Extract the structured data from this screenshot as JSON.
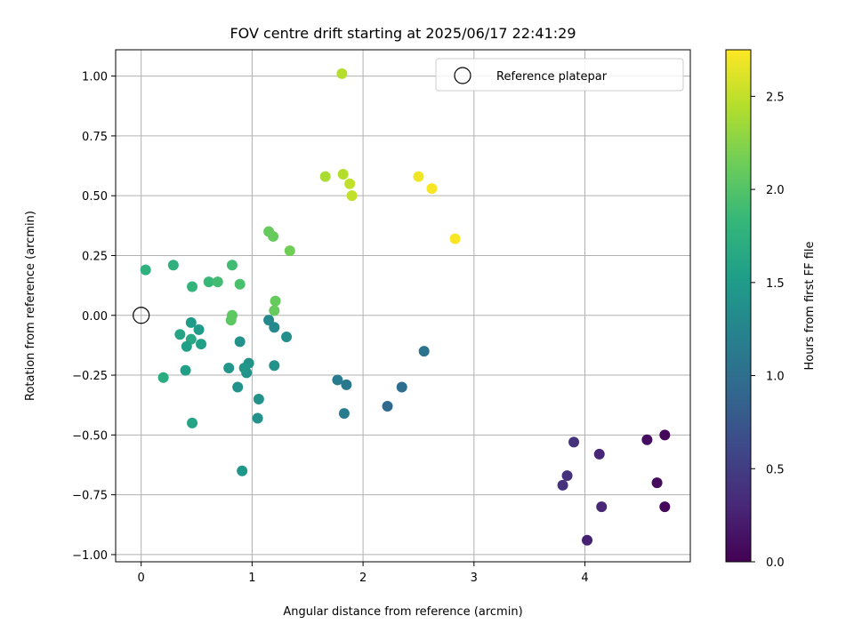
{
  "chart_data": {
    "type": "scatter",
    "title": "FOV centre drift starting at 2025/06/17 22:41:29",
    "xlabel": "Angular distance from reference (arcmin)",
    "ylabel": "Rotation from reference (arcmin)",
    "xlim": [
      -0.23,
      4.95
    ],
    "ylim": [
      -1.03,
      1.11
    ],
    "xticks": [
      "0",
      "1",
      "2",
      "3",
      "4"
    ],
    "yticks": [
      "−1.00",
      "−0.75",
      "−0.50",
      "−0.25",
      "0.00",
      "0.25",
      "0.50",
      "0.75",
      "1.00"
    ],
    "grid": true,
    "legend": {
      "placement": "top-right",
      "entries": [
        "Reference platepar"
      ]
    },
    "reference_point": {
      "x": 0.0,
      "y": 0.0
    },
    "colorbar": {
      "label": "Hours from first FF file",
      "colormap": "viridis",
      "range": [
        0.0,
        2.75
      ],
      "ticks": [
        "0.0",
        "0.5",
        "1.0",
        "1.5",
        "2.0",
        "2.5"
      ]
    },
    "points": [
      {
        "x": 4.72,
        "y": -0.5,
        "c": 0.05
      },
      {
        "x": 4.72,
        "y": -0.8,
        "c": 0.05
      },
      {
        "x": 4.65,
        "y": -0.7,
        "c": 0.08
      },
      {
        "x": 4.56,
        "y": -0.52,
        "c": 0.1
      },
      {
        "x": 4.02,
        "y": -0.94,
        "c": 0.25
      },
      {
        "x": 4.13,
        "y": -0.58,
        "c": 0.3
      },
      {
        "x": 4.15,
        "y": -0.8,
        "c": 0.3
      },
      {
        "x": 3.9,
        "y": -0.53,
        "c": 0.4
      },
      {
        "x": 3.84,
        "y": -0.67,
        "c": 0.4
      },
      {
        "x": 3.8,
        "y": -0.71,
        "c": 0.4
      },
      {
        "x": 2.55,
        "y": -0.15,
        "c": 1.05
      },
      {
        "x": 2.35,
        "y": -0.3,
        "c": 1.0
      },
      {
        "x": 2.22,
        "y": -0.38,
        "c": 0.95
      },
      {
        "x": 1.83,
        "y": -0.41,
        "c": 1.15
      },
      {
        "x": 1.85,
        "y": -0.29,
        "c": 1.1
      },
      {
        "x": 1.77,
        "y": -0.27,
        "c": 1.15
      },
      {
        "x": 1.31,
        "y": -0.09,
        "c": 1.35
      },
      {
        "x": 1.2,
        "y": -0.21,
        "c": 1.4
      },
      {
        "x": 1.2,
        "y": -0.05,
        "c": 1.3
      },
      {
        "x": 1.15,
        "y": -0.02,
        "c": 1.3
      },
      {
        "x": 1.06,
        "y": -0.35,
        "c": 1.4
      },
      {
        "x": 1.05,
        "y": -0.43,
        "c": 1.4
      },
      {
        "x": 0.97,
        "y": -0.2,
        "c": 1.4
      },
      {
        "x": 0.95,
        "y": -0.24,
        "c": 1.4
      },
      {
        "x": 0.93,
        "y": -0.22,
        "c": 1.45
      },
      {
        "x": 0.91,
        "y": -0.65,
        "c": 1.45
      },
      {
        "x": 0.89,
        "y": -0.11,
        "c": 1.4
      },
      {
        "x": 0.87,
        "y": -0.3,
        "c": 1.4
      },
      {
        "x": 0.79,
        "y": -0.22,
        "c": 1.45
      },
      {
        "x": 0.54,
        "y": -0.12,
        "c": 1.55
      },
      {
        "x": 0.52,
        "y": -0.06,
        "c": 1.5
      },
      {
        "x": 0.46,
        "y": -0.45,
        "c": 1.6
      },
      {
        "x": 0.45,
        "y": -0.1,
        "c": 1.65
      },
      {
        "x": 0.45,
        "y": -0.03,
        "c": 1.5
      },
      {
        "x": 0.41,
        "y": -0.13,
        "c": 1.55
      },
      {
        "x": 0.4,
        "y": -0.23,
        "c": 1.55
      },
      {
        "x": 0.35,
        "y": -0.08,
        "c": 1.6
      },
      {
        "x": 0.2,
        "y": -0.26,
        "c": 1.7
      },
      {
        "x": 0.04,
        "y": 0.19,
        "c": 1.75
      },
      {
        "x": 0.29,
        "y": 0.21,
        "c": 1.75
      },
      {
        "x": 0.46,
        "y": 0.12,
        "c": 1.8
      },
      {
        "x": 0.61,
        "y": 0.14,
        "c": 1.85
      },
      {
        "x": 0.69,
        "y": 0.14,
        "c": 1.9
      },
      {
        "x": 0.82,
        "y": 0.21,
        "c": 1.9
      },
      {
        "x": 0.89,
        "y": 0.13,
        "c": 1.95
      },
      {
        "x": 0.81,
        "y": -0.02,
        "c": 2.05
      },
      {
        "x": 0.82,
        "y": 0.0,
        "c": 2.05
      },
      {
        "x": 1.2,
        "y": 0.02,
        "c": 2.1
      },
      {
        "x": 1.21,
        "y": 0.06,
        "c": 2.1
      },
      {
        "x": 1.15,
        "y": 0.35,
        "c": 2.1
      },
      {
        "x": 1.19,
        "y": 0.33,
        "c": 2.1
      },
      {
        "x": 1.34,
        "y": 0.27,
        "c": 2.15
      },
      {
        "x": 1.66,
        "y": 0.58,
        "c": 2.4
      },
      {
        "x": 1.82,
        "y": 0.59,
        "c": 2.45
      },
      {
        "x": 1.88,
        "y": 0.55,
        "c": 2.5
      },
      {
        "x": 1.9,
        "y": 0.5,
        "c": 2.5
      },
      {
        "x": 1.81,
        "y": 1.01,
        "c": 2.45
      },
      {
        "x": 2.5,
        "y": 0.58,
        "c": 2.7
      },
      {
        "x": 2.62,
        "y": 0.53,
        "c": 2.72
      },
      {
        "x": 2.83,
        "y": 0.32,
        "c": 2.73
      }
    ]
  }
}
